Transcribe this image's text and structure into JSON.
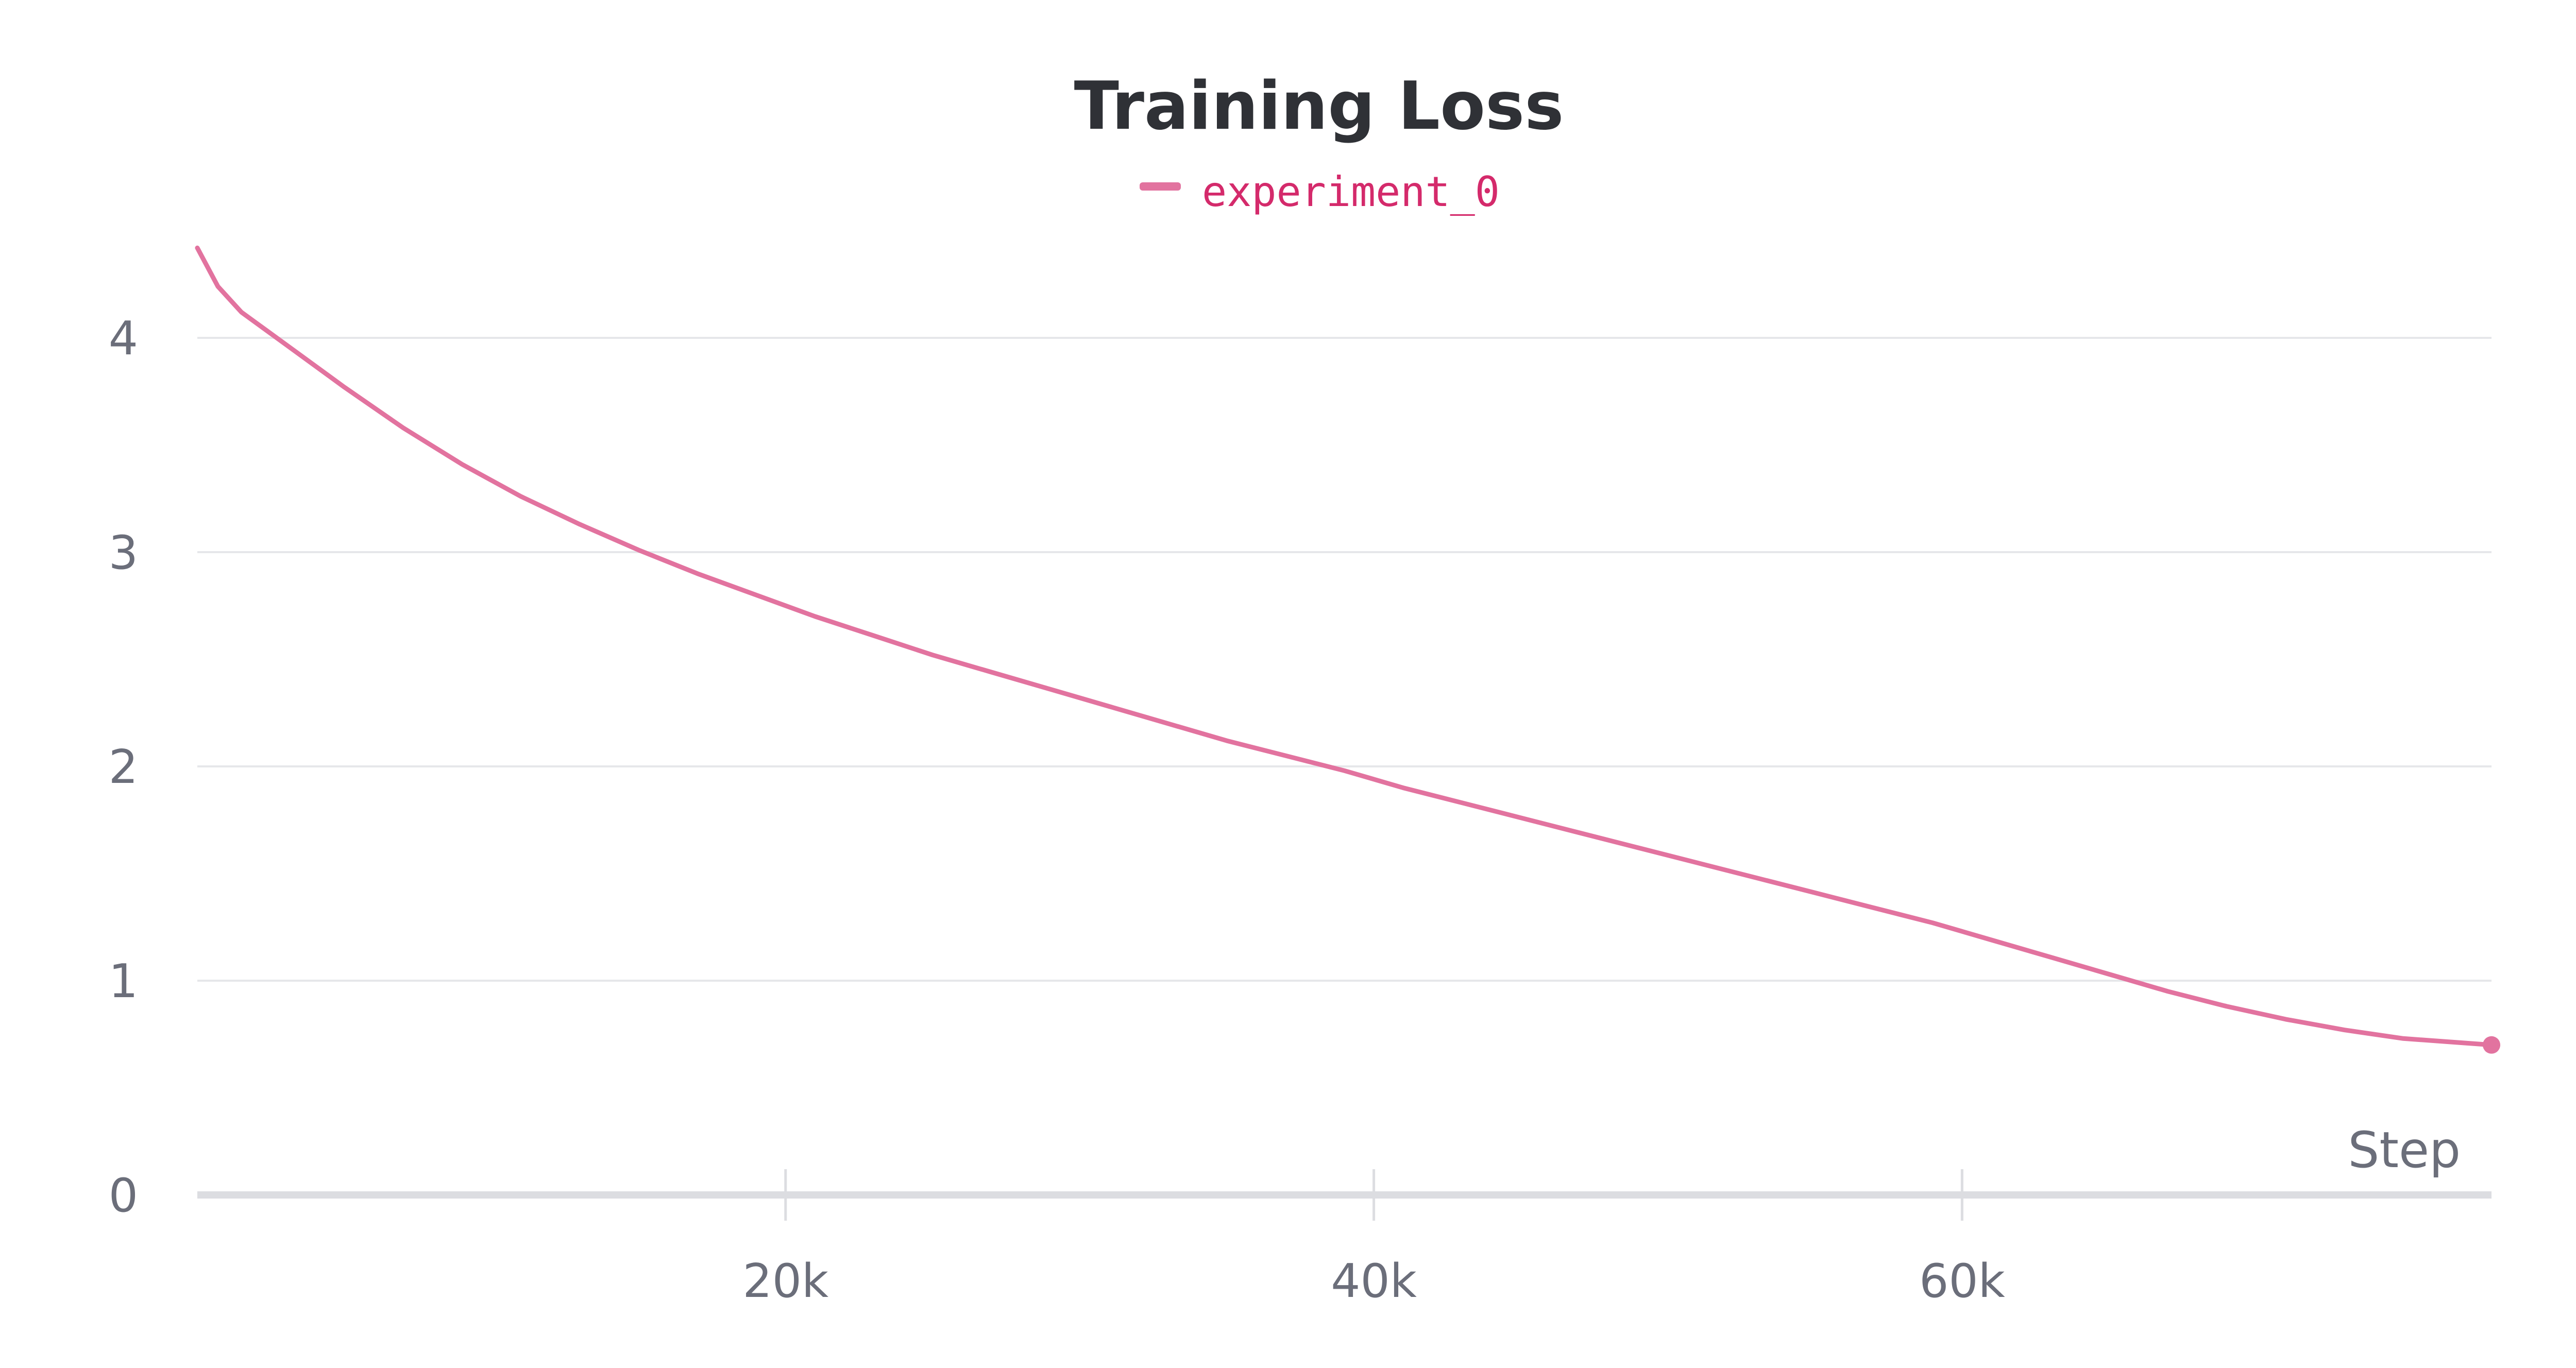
{
  "chart_data": {
    "type": "line",
    "title": "Training Loss",
    "xlabel": "Step",
    "ylabel": "",
    "xlim": [
      0,
      78000
    ],
    "ylim": [
      0,
      4.5
    ],
    "x_ticks": [
      {
        "value": 20000,
        "label": "20k"
      },
      {
        "value": 40000,
        "label": "40k"
      },
      {
        "value": 60000,
        "label": "60k"
      }
    ],
    "y_ticks": [
      {
        "value": 0,
        "label": "0"
      },
      {
        "value": 1,
        "label": "1"
      },
      {
        "value": 2,
        "label": "2"
      },
      {
        "value": 3,
        "label": "3"
      },
      {
        "value": 4,
        "label": "4"
      }
    ],
    "grid": "horizontal",
    "legend_position": "top-center",
    "series": [
      {
        "name": "experiment_0",
        "color": "#e2739f",
        "x": [
          0,
          700,
          1500,
          3000,
          5000,
          7000,
          9000,
          11000,
          13000,
          15000,
          17000,
          19000,
          21000,
          23000,
          25000,
          27000,
          29000,
          31000,
          33000,
          35000,
          37000,
          39000,
          41000,
          43000,
          45000,
          47000,
          49000,
          51000,
          53000,
          55000,
          57000,
          59000,
          61000,
          63000,
          65000,
          67000,
          69000,
          71000,
          73000,
          75000,
          77000,
          78000
        ],
        "values": [
          4.42,
          4.24,
          4.12,
          3.97,
          3.77,
          3.58,
          3.41,
          3.26,
          3.13,
          3.01,
          2.9,
          2.8,
          2.7,
          2.61,
          2.52,
          2.44,
          2.36,
          2.28,
          2.2,
          2.12,
          2.05,
          1.98,
          1.9,
          1.83,
          1.76,
          1.69,
          1.62,
          1.55,
          1.48,
          1.41,
          1.34,
          1.27,
          1.19,
          1.11,
          1.03,
          0.95,
          0.88,
          0.82,
          0.77,
          0.73,
          0.71,
          0.7
        ]
      }
    ]
  }
}
